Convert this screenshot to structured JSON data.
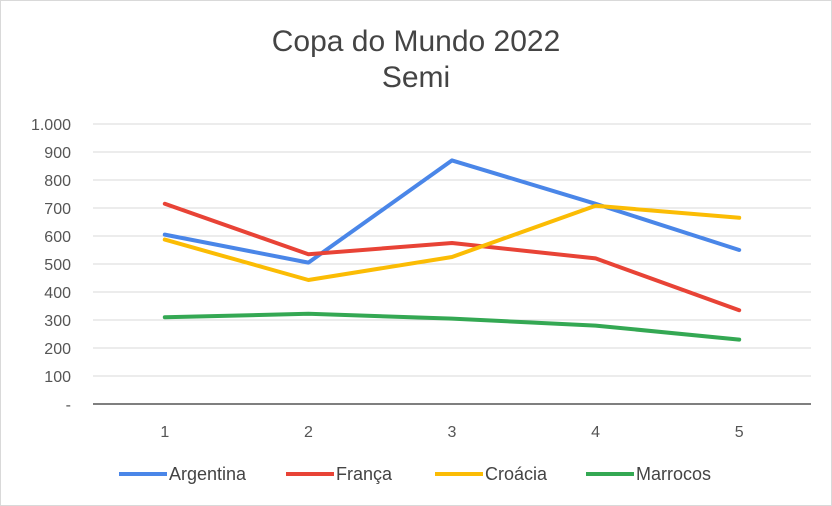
{
  "chart_data": {
    "type": "line",
    "title": "Copa do Mundo 2022",
    "subtitle": "Semi",
    "xlabel": "",
    "ylabel": "",
    "x": [
      "1",
      "2",
      "3",
      "4",
      "5"
    ],
    "y_ticks": [
      "-",
      "100",
      "200",
      "300",
      "400",
      "500",
      "600",
      "700",
      "800",
      "900",
      "1.000"
    ],
    "ylim": [
      0,
      1000
    ],
    "grid": true,
    "legend_position": "bottom",
    "series": [
      {
        "name": "Argentina",
        "color": "#4a86e8",
        "values": [
          605,
          505,
          870,
          715,
          550
        ]
      },
      {
        "name": "França",
        "color": "#e84336",
        "values": [
          715,
          535,
          575,
          520,
          335
        ]
      },
      {
        "name": "Croácia",
        "color": "#fbbc04",
        "values": [
          587,
          443,
          525,
          708,
          665
        ]
      },
      {
        "name": "Marrocos",
        "color": "#34a853",
        "values": [
          310,
          322,
          305,
          280,
          230
        ]
      }
    ]
  }
}
